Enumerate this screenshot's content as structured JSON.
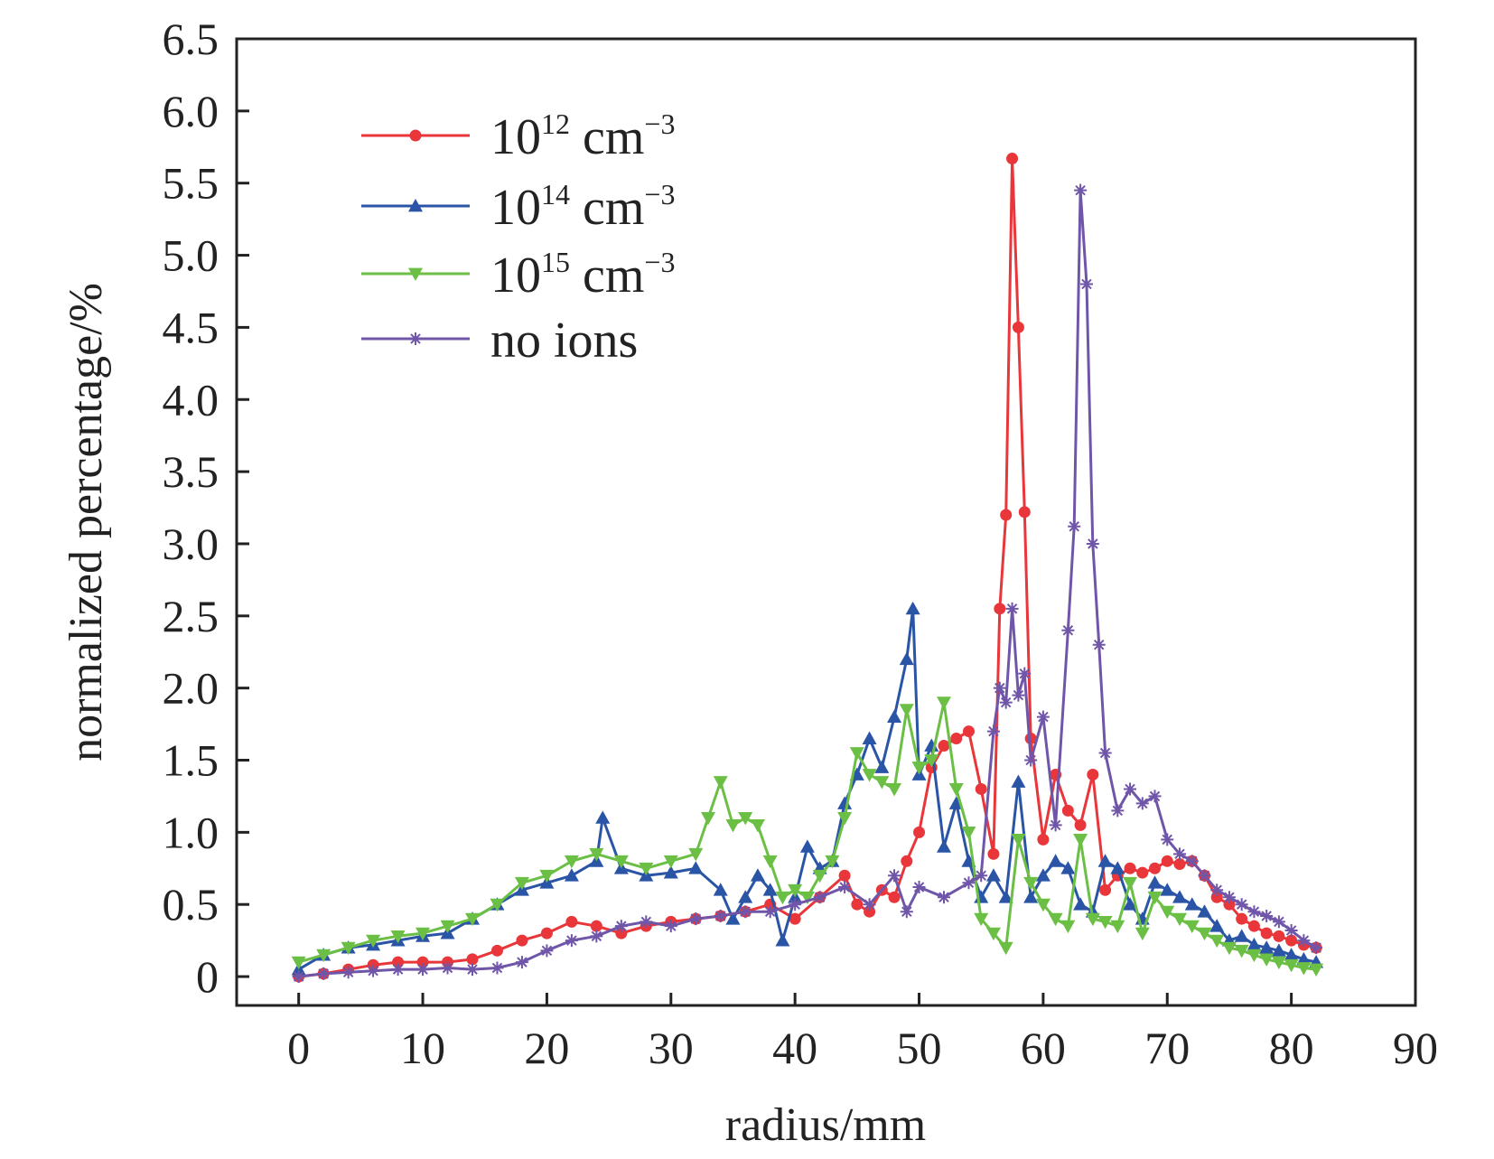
{
  "chart_data": {
    "type": "line",
    "title": "",
    "xlabel": "radius/mm",
    "ylabel": "normalized percentage/%",
    "xlim": [
      -5,
      90
    ],
    "ylim": [
      -0.2,
      6.5
    ],
    "xticks": [
      0,
      10,
      20,
      30,
      40,
      50,
      60,
      70,
      80,
      90
    ],
    "xtick_labels": [
      "0",
      "10",
      "20",
      "30",
      "40",
      "50",
      "60",
      "70",
      "80",
      "90"
    ],
    "yticks": [
      0,
      0.5,
      1.0,
      1.5,
      2.0,
      2.5,
      3.0,
      3.5,
      4.0,
      4.5,
      5.0,
      5.5,
      6.0,
      6.5
    ],
    "ytick_labels": [
      "0",
      "0.5",
      "1.0",
      "1.5",
      "2.0",
      "2.5",
      "3.0",
      "3.5",
      "4.0",
      "4.5",
      "5.0",
      "5.5",
      "6.0",
      "6.5"
    ],
    "grid": false,
    "legend_position": "top-left",
    "series": [
      {
        "name": "10^12 cm^-3",
        "label_base": "10",
        "label_exp": "12",
        "label_unit": "cm",
        "label_unit_exp": "−3",
        "color": "#e8363a",
        "marker": "circle",
        "x": [
          0,
          2,
          4,
          6,
          8,
          10,
          12,
          14,
          16,
          18,
          20,
          22,
          24,
          26,
          28,
          30,
          32,
          34,
          36,
          38,
          40,
          42,
          44,
          45,
          46,
          47,
          48,
          49,
          50,
          51,
          52,
          53,
          54,
          55,
          56,
          56.5,
          57,
          57.5,
          58,
          58.5,
          59,
          60,
          61,
          62,
          63,
          64,
          65,
          66,
          67,
          68,
          69,
          70,
          71,
          72,
          73,
          74,
          75,
          76,
          77,
          78,
          79,
          80,
          81,
          82
        ],
        "y": [
          0,
          0.02,
          0.05,
          0.08,
          0.1,
          0.1,
          0.1,
          0.12,
          0.18,
          0.25,
          0.3,
          0.38,
          0.35,
          0.3,
          0.35,
          0.38,
          0.4,
          0.42,
          0.45,
          0.5,
          0.4,
          0.55,
          0.7,
          0.5,
          0.45,
          0.6,
          0.55,
          0.8,
          1.0,
          1.45,
          1.6,
          1.65,
          1.7,
          1.3,
          0.85,
          2.55,
          3.2,
          5.67,
          4.5,
          3.22,
          1.65,
          0.95,
          1.4,
          1.15,
          1.05,
          1.4,
          0.6,
          0.7,
          0.75,
          0.72,
          0.75,
          0.8,
          0.78,
          0.8,
          0.7,
          0.55,
          0.5,
          0.4,
          0.35,
          0.3,
          0.28,
          0.25,
          0.22,
          0.2
        ]
      },
      {
        "name": "10^14 cm^-3",
        "label_base": "10",
        "label_exp": "14",
        "label_unit": "cm",
        "label_unit_exp": "−3",
        "color": "#2a54a5",
        "marker": "triangle-up",
        "x": [
          0,
          2,
          4,
          6,
          8,
          10,
          12,
          14,
          16,
          18,
          20,
          22,
          24,
          24.5,
          26,
          28,
          30,
          32,
          34,
          35,
          36,
          37,
          38,
          39,
          40,
          41,
          42,
          43,
          44,
          45,
          46,
          47,
          48,
          49,
          49.5,
          50,
          51,
          52,
          53,
          54,
          55,
          56,
          57,
          58,
          59,
          60,
          61,
          62,
          63,
          64,
          65,
          66,
          67,
          68,
          69,
          70,
          71,
          72,
          73,
          74,
          75,
          76,
          77,
          78,
          79,
          80,
          81,
          82
        ],
        "y": [
          0.05,
          0.15,
          0.2,
          0.22,
          0.25,
          0.28,
          0.3,
          0.4,
          0.5,
          0.6,
          0.65,
          0.7,
          0.8,
          1.1,
          0.75,
          0.7,
          0.72,
          0.75,
          0.6,
          0.4,
          0.55,
          0.7,
          0.6,
          0.25,
          0.55,
          0.9,
          0.75,
          0.8,
          1.2,
          1.4,
          1.65,
          1.45,
          1.8,
          2.2,
          2.55,
          1.4,
          1.6,
          0.9,
          1.2,
          0.8,
          0.55,
          0.7,
          0.55,
          1.35,
          0.55,
          0.7,
          0.8,
          0.75,
          0.5,
          0.45,
          0.8,
          0.75,
          0.5,
          0.4,
          0.65,
          0.6,
          0.55,
          0.5,
          0.45,
          0.35,
          0.25,
          0.28,
          0.22,
          0.2,
          0.18,
          0.15,
          0.12,
          0.1
        ]
      },
      {
        "name": "10^15 cm^-3",
        "label_base": "10",
        "label_exp": "15",
        "label_unit": "cm",
        "label_unit_exp": "−3",
        "color": "#6bbf45",
        "marker": "triangle-down",
        "x": [
          0,
          2,
          4,
          6,
          8,
          10,
          12,
          14,
          16,
          18,
          20,
          22,
          24,
          26,
          28,
          30,
          32,
          33,
          34,
          35,
          36,
          37,
          38,
          39,
          40,
          41,
          42,
          43,
          44,
          45,
          46,
          47,
          48,
          49,
          50,
          51,
          52,
          53,
          54,
          55,
          56,
          57,
          58,
          59,
          60,
          61,
          62,
          63,
          64,
          65,
          66,
          67,
          68,
          69,
          70,
          71,
          72,
          73,
          74,
          75,
          76,
          77,
          78,
          79,
          80,
          81,
          82
        ],
        "y": [
          0.1,
          0.15,
          0.2,
          0.25,
          0.28,
          0.3,
          0.35,
          0.4,
          0.5,
          0.65,
          0.7,
          0.8,
          0.85,
          0.8,
          0.75,
          0.8,
          0.85,
          1.1,
          1.35,
          1.05,
          1.1,
          1.05,
          0.8,
          0.55,
          0.6,
          0.55,
          0.7,
          0.8,
          1.1,
          1.55,
          1.4,
          1.35,
          1.3,
          1.85,
          1.45,
          1.5,
          1.9,
          1.3,
          1.0,
          0.4,
          0.3,
          0.2,
          0.95,
          0.65,
          0.5,
          0.4,
          0.35,
          0.95,
          0.4,
          0.38,
          0.35,
          0.65,
          0.3,
          0.55,
          0.45,
          0.4,
          0.35,
          0.3,
          0.25,
          0.2,
          0.18,
          0.15,
          0.12,
          0.1,
          0.08,
          0.06,
          0.05
        ]
      },
      {
        "name": "no ions",
        "color": "#7056a8",
        "marker": "asterisk",
        "x": [
          0,
          2,
          4,
          6,
          8,
          10,
          12,
          14,
          16,
          18,
          20,
          22,
          24,
          26,
          28,
          30,
          32,
          34,
          36,
          38,
          40,
          42,
          44,
          46,
          48,
          49,
          50,
          52,
          54,
          55,
          56,
          56.5,
          57,
          57.5,
          58,
          58.5,
          59,
          60,
          61,
          62,
          62.5,
          63,
          63.5,
          64,
          64.5,
          65,
          66,
          67,
          68,
          69,
          70,
          71,
          72,
          73,
          74,
          75,
          76,
          77,
          78,
          79,
          80,
          81,
          82
        ],
        "y": [
          0,
          0.02,
          0.03,
          0.04,
          0.05,
          0.05,
          0.06,
          0.05,
          0.06,
          0.1,
          0.18,
          0.25,
          0.28,
          0.35,
          0.38,
          0.35,
          0.4,
          0.42,
          0.45,
          0.45,
          0.5,
          0.55,
          0.62,
          0.5,
          0.7,
          0.45,
          0.62,
          0.55,
          0.65,
          0.7,
          1.7,
          2.0,
          1.9,
          2.55,
          1.95,
          2.1,
          1.5,
          1.8,
          1.05,
          2.4,
          3.12,
          5.45,
          4.8,
          3.0,
          2.3,
          1.55,
          1.15,
          1.3,
          1.2,
          1.25,
          0.95,
          0.85,
          0.8,
          0.7,
          0.6,
          0.55,
          0.5,
          0.45,
          0.42,
          0.38,
          0.32,
          0.25,
          0.2
        ]
      }
    ]
  }
}
